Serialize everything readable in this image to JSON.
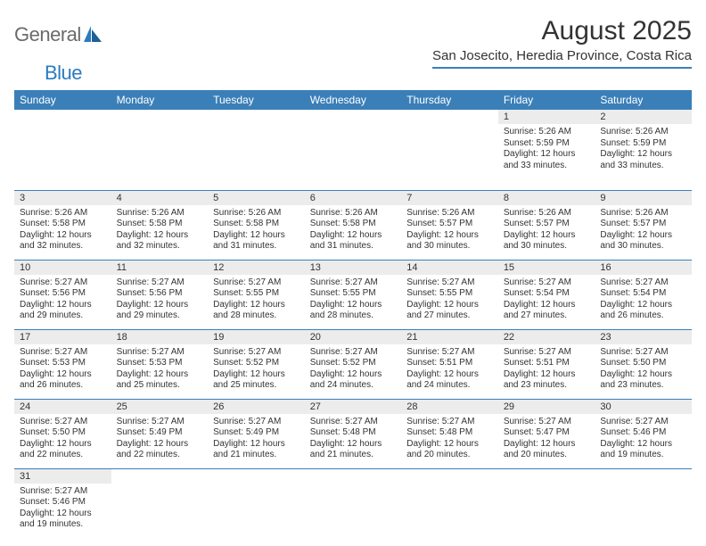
{
  "logo": {
    "text1": "General",
    "text2": "Blue"
  },
  "title": "August 2025",
  "location": "San Josecito, Heredia Province, Costa Rica",
  "colors": {
    "header_bg": "#3b7fb8",
    "header_text": "#ffffff",
    "daynum_bg": "#ececec",
    "cell_border": "#3b7fb8",
    "page_bg": "#ffffff",
    "logo_gray": "#6b6b6b",
    "logo_blue": "#2b7bbf"
  },
  "typography": {
    "title_fontsize": 30,
    "location_fontsize": 15,
    "dow_fontsize": 12,
    "daynum_fontsize": 11,
    "cell_fontsize": 10
  },
  "days_of_week": [
    "Sunday",
    "Monday",
    "Tuesday",
    "Wednesday",
    "Thursday",
    "Friday",
    "Saturday"
  ],
  "weeks": [
    [
      {
        "n": "",
        "sr": "",
        "ss": "",
        "dl": ""
      },
      {
        "n": "",
        "sr": "",
        "ss": "",
        "dl": ""
      },
      {
        "n": "",
        "sr": "",
        "ss": "",
        "dl": ""
      },
      {
        "n": "",
        "sr": "",
        "ss": "",
        "dl": ""
      },
      {
        "n": "",
        "sr": "",
        "ss": "",
        "dl": ""
      },
      {
        "n": "1",
        "sr": "Sunrise: 5:26 AM",
        "ss": "Sunset: 5:59 PM",
        "dl": "Daylight: 12 hours and 33 minutes."
      },
      {
        "n": "2",
        "sr": "Sunrise: 5:26 AM",
        "ss": "Sunset: 5:59 PM",
        "dl": "Daylight: 12 hours and 33 minutes."
      }
    ],
    [
      {
        "n": "3",
        "sr": "Sunrise: 5:26 AM",
        "ss": "Sunset: 5:58 PM",
        "dl": "Daylight: 12 hours and 32 minutes."
      },
      {
        "n": "4",
        "sr": "Sunrise: 5:26 AM",
        "ss": "Sunset: 5:58 PM",
        "dl": "Daylight: 12 hours and 32 minutes."
      },
      {
        "n": "5",
        "sr": "Sunrise: 5:26 AM",
        "ss": "Sunset: 5:58 PM",
        "dl": "Daylight: 12 hours and 31 minutes."
      },
      {
        "n": "6",
        "sr": "Sunrise: 5:26 AM",
        "ss": "Sunset: 5:58 PM",
        "dl": "Daylight: 12 hours and 31 minutes."
      },
      {
        "n": "7",
        "sr": "Sunrise: 5:26 AM",
        "ss": "Sunset: 5:57 PM",
        "dl": "Daylight: 12 hours and 30 minutes."
      },
      {
        "n": "8",
        "sr": "Sunrise: 5:26 AM",
        "ss": "Sunset: 5:57 PM",
        "dl": "Daylight: 12 hours and 30 minutes."
      },
      {
        "n": "9",
        "sr": "Sunrise: 5:26 AM",
        "ss": "Sunset: 5:57 PM",
        "dl": "Daylight: 12 hours and 30 minutes."
      }
    ],
    [
      {
        "n": "10",
        "sr": "Sunrise: 5:27 AM",
        "ss": "Sunset: 5:56 PM",
        "dl": "Daylight: 12 hours and 29 minutes."
      },
      {
        "n": "11",
        "sr": "Sunrise: 5:27 AM",
        "ss": "Sunset: 5:56 PM",
        "dl": "Daylight: 12 hours and 29 minutes."
      },
      {
        "n": "12",
        "sr": "Sunrise: 5:27 AM",
        "ss": "Sunset: 5:55 PM",
        "dl": "Daylight: 12 hours and 28 minutes."
      },
      {
        "n": "13",
        "sr": "Sunrise: 5:27 AM",
        "ss": "Sunset: 5:55 PM",
        "dl": "Daylight: 12 hours and 28 minutes."
      },
      {
        "n": "14",
        "sr": "Sunrise: 5:27 AM",
        "ss": "Sunset: 5:55 PM",
        "dl": "Daylight: 12 hours and 27 minutes."
      },
      {
        "n": "15",
        "sr": "Sunrise: 5:27 AM",
        "ss": "Sunset: 5:54 PM",
        "dl": "Daylight: 12 hours and 27 minutes."
      },
      {
        "n": "16",
        "sr": "Sunrise: 5:27 AM",
        "ss": "Sunset: 5:54 PM",
        "dl": "Daylight: 12 hours and 26 minutes."
      }
    ],
    [
      {
        "n": "17",
        "sr": "Sunrise: 5:27 AM",
        "ss": "Sunset: 5:53 PM",
        "dl": "Daylight: 12 hours and 26 minutes."
      },
      {
        "n": "18",
        "sr": "Sunrise: 5:27 AM",
        "ss": "Sunset: 5:53 PM",
        "dl": "Daylight: 12 hours and 25 minutes."
      },
      {
        "n": "19",
        "sr": "Sunrise: 5:27 AM",
        "ss": "Sunset: 5:52 PM",
        "dl": "Daylight: 12 hours and 25 minutes."
      },
      {
        "n": "20",
        "sr": "Sunrise: 5:27 AM",
        "ss": "Sunset: 5:52 PM",
        "dl": "Daylight: 12 hours and 24 minutes."
      },
      {
        "n": "21",
        "sr": "Sunrise: 5:27 AM",
        "ss": "Sunset: 5:51 PM",
        "dl": "Daylight: 12 hours and 24 minutes."
      },
      {
        "n": "22",
        "sr": "Sunrise: 5:27 AM",
        "ss": "Sunset: 5:51 PM",
        "dl": "Daylight: 12 hours and 23 minutes."
      },
      {
        "n": "23",
        "sr": "Sunrise: 5:27 AM",
        "ss": "Sunset: 5:50 PM",
        "dl": "Daylight: 12 hours and 23 minutes."
      }
    ],
    [
      {
        "n": "24",
        "sr": "Sunrise: 5:27 AM",
        "ss": "Sunset: 5:50 PM",
        "dl": "Daylight: 12 hours and 22 minutes."
      },
      {
        "n": "25",
        "sr": "Sunrise: 5:27 AM",
        "ss": "Sunset: 5:49 PM",
        "dl": "Daylight: 12 hours and 22 minutes."
      },
      {
        "n": "26",
        "sr": "Sunrise: 5:27 AM",
        "ss": "Sunset: 5:49 PM",
        "dl": "Daylight: 12 hours and 21 minutes."
      },
      {
        "n": "27",
        "sr": "Sunrise: 5:27 AM",
        "ss": "Sunset: 5:48 PM",
        "dl": "Daylight: 12 hours and 21 minutes."
      },
      {
        "n": "28",
        "sr": "Sunrise: 5:27 AM",
        "ss": "Sunset: 5:48 PM",
        "dl": "Daylight: 12 hours and 20 minutes."
      },
      {
        "n": "29",
        "sr": "Sunrise: 5:27 AM",
        "ss": "Sunset: 5:47 PM",
        "dl": "Daylight: 12 hours and 20 minutes."
      },
      {
        "n": "30",
        "sr": "Sunrise: 5:27 AM",
        "ss": "Sunset: 5:46 PM",
        "dl": "Daylight: 12 hours and 19 minutes."
      }
    ],
    [
      {
        "n": "31",
        "sr": "Sunrise: 5:27 AM",
        "ss": "Sunset: 5:46 PM",
        "dl": "Daylight: 12 hours and 19 minutes."
      },
      {
        "n": "",
        "sr": "",
        "ss": "",
        "dl": ""
      },
      {
        "n": "",
        "sr": "",
        "ss": "",
        "dl": ""
      },
      {
        "n": "",
        "sr": "",
        "ss": "",
        "dl": ""
      },
      {
        "n": "",
        "sr": "",
        "ss": "",
        "dl": ""
      },
      {
        "n": "",
        "sr": "",
        "ss": "",
        "dl": ""
      },
      {
        "n": "",
        "sr": "",
        "ss": "",
        "dl": ""
      }
    ]
  ]
}
